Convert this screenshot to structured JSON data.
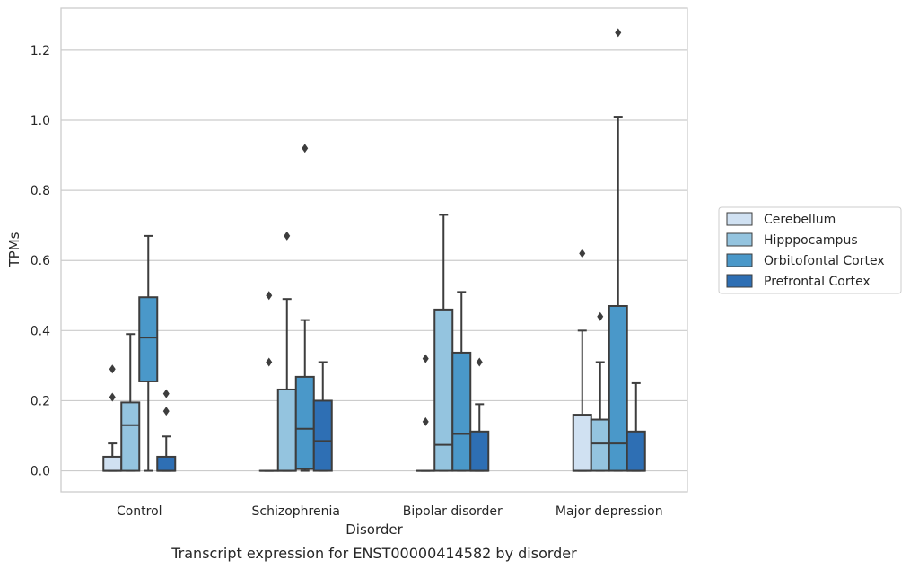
{
  "chart_data": {
    "type": "box",
    "caption": "Transcript expression for ENST00000414582 by disorder",
    "xlabel": "Disorder",
    "ylabel": "TPMs",
    "ylim": [
      -0.06,
      1.32
    ],
    "yticks": [
      0.0,
      0.2,
      0.4,
      0.6,
      0.8,
      1.0,
      1.2
    ],
    "ytick_labels": [
      "0.0",
      "0.2",
      "0.4",
      "0.6",
      "0.8",
      "1.0",
      "1.2"
    ],
    "grid": "horizontal",
    "legend_placement": "right",
    "categories": [
      "Control",
      "Schizophrenia",
      "Bipolar disorder",
      "Major depression"
    ],
    "series": [
      {
        "name": "Cerebellum",
        "color": "#d0e1f2",
        "boxes": [
          {
            "q1": 0.0,
            "median": 0.0,
            "q3": 0.04,
            "whisker_low": 0.0,
            "whisker_high": 0.078,
            "outliers": [
              0.21,
              0.29
            ]
          },
          {
            "q1": 0.0,
            "median": 0.0,
            "q3": 0.0,
            "whisker_low": 0.0,
            "whisker_high": 0.0,
            "outliers": [
              0.31,
              0.5
            ]
          },
          {
            "q1": 0.0,
            "median": 0.0,
            "q3": 0.0,
            "whisker_low": 0.0,
            "whisker_high": 0.0,
            "outliers": [
              0.14,
              0.32
            ]
          },
          {
            "q1": 0.0,
            "median": 0.0,
            "q3": 0.16,
            "whisker_low": 0.0,
            "whisker_high": 0.4,
            "outliers": [
              0.62
            ]
          }
        ]
      },
      {
        "name": "Hipppocampus",
        "color": "#94c4df",
        "boxes": [
          {
            "q1": 0.0,
            "median": 0.13,
            "q3": 0.195,
            "whisker_low": 0.0,
            "whisker_high": 0.39,
            "outliers": []
          },
          {
            "q1": 0.0,
            "median": 0.0,
            "q3": 0.232,
            "whisker_low": 0.0,
            "whisker_high": 0.49,
            "outliers": [
              0.67
            ]
          },
          {
            "q1": 0.0,
            "median": 0.074,
            "q3": 0.46,
            "whisker_low": 0.0,
            "whisker_high": 0.73,
            "outliers": []
          },
          {
            "q1": 0.0,
            "median": 0.078,
            "q3": 0.146,
            "whisker_low": 0.0,
            "whisker_high": 0.31,
            "outliers": [
              0.44
            ]
          }
        ]
      },
      {
        "name": "Orbitofontal Cortex",
        "color": "#4a98c9",
        "boxes": [
          {
            "q1": 0.255,
            "median": 0.38,
            "q3": 0.495,
            "whisker_low": 0.0,
            "whisker_high": 0.67,
            "outliers": []
          },
          {
            "q1": 0.005,
            "median": 0.12,
            "q3": 0.268,
            "whisker_low": 0.0,
            "whisker_high": 0.43,
            "outliers": [
              0.92
            ]
          },
          {
            "q1": 0.0,
            "median": 0.105,
            "q3": 0.337,
            "whisker_low": 0.0,
            "whisker_high": 0.51,
            "outliers": []
          },
          {
            "q1": 0.0,
            "median": 0.078,
            "q3": 0.47,
            "whisker_low": 0.0,
            "whisker_high": 1.01,
            "outliers": [
              1.25
            ]
          }
        ]
      },
      {
        "name": "Prefrontal Cortex",
        "color": "#2e6fb4",
        "boxes": [
          {
            "q1": 0.0,
            "median": 0.0,
            "q3": 0.04,
            "whisker_low": 0.0,
            "whisker_high": 0.098,
            "outliers": [
              0.17,
              0.22
            ]
          },
          {
            "q1": 0.0,
            "median": 0.085,
            "q3": 0.2,
            "whisker_low": 0.0,
            "whisker_high": 0.31,
            "outliers": []
          },
          {
            "q1": 0.0,
            "median": 0.0,
            "q3": 0.112,
            "whisker_low": 0.0,
            "whisker_high": 0.19,
            "outliers": [
              0.31
            ]
          },
          {
            "q1": 0.0,
            "median": 0.0,
            "q3": 0.112,
            "whisker_low": 0.0,
            "whisker_high": 0.25,
            "outliers": []
          }
        ]
      }
    ]
  }
}
